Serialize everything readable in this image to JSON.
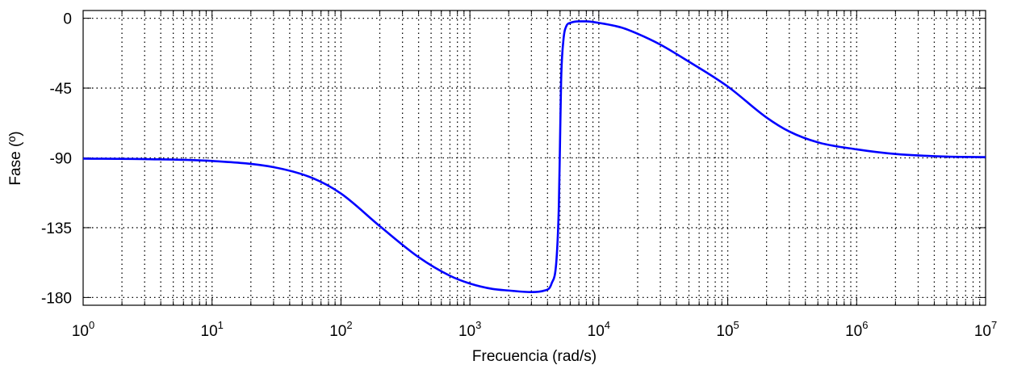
{
  "chart_data": {
    "type": "line",
    "title": "",
    "xlabel": "Frecuencia (rad/s)",
    "ylabel": "Fase (º)",
    "xscale": "log",
    "xlim": [
      1,
      10000000
    ],
    "ylim": [
      -185,
      5
    ],
    "grid": true,
    "grid_style": "dotted",
    "x_ticks": [
      {
        "base": "10",
        "exp": "0",
        "value": 1
      },
      {
        "base": "10",
        "exp": "1",
        "value": 10
      },
      {
        "base": "10",
        "exp": "2",
        "value": 100
      },
      {
        "base": "10",
        "exp": "3",
        "value": 1000
      },
      {
        "base": "10",
        "exp": "4",
        "value": 10000
      },
      {
        "base": "10",
        "exp": "5",
        "value": 100000
      },
      {
        "base": "10",
        "exp": "6",
        "value": 1000000
      },
      {
        "base": "10",
        "exp": "7",
        "value": 10000000
      }
    ],
    "y_ticks": [
      {
        "label": "0",
        "value": 0
      },
      {
        "label": "-45",
        "value": -45
      },
      {
        "label": "-90",
        "value": -90
      },
      {
        "label": "-135",
        "value": -135
      },
      {
        "label": "-180",
        "value": -180
      }
    ],
    "series": [
      {
        "color": "#0000ff",
        "x": [
          1,
          3,
          10,
          30,
          60,
          100,
          200,
          400,
          700,
          1000,
          1500,
          2000,
          3000,
          3800,
          4300,
          4700,
          4900,
          5000,
          5100,
          5300,
          5600,
          6000,
          7000,
          8000,
          10000,
          15000,
          20000,
          30000,
          50000,
          100000,
          200000,
          300000,
          500000,
          1000000,
          2000000,
          5000000,
          10000000
        ],
        "y": [
          -90.5,
          -90.8,
          -92,
          -96,
          -103,
          -113,
          -134,
          -154,
          -166,
          -171,
          -174.5,
          -175.5,
          -176.5,
          -175.5,
          -171,
          -155,
          -120,
          -80,
          -40,
          -15,
          -5,
          -3,
          -2,
          -2,
          -3,
          -6,
          -10,
          -17,
          -28,
          -44,
          -64,
          -73,
          -80,
          -84.5,
          -87.5,
          -89.2,
          -89.5
        ]
      }
    ]
  }
}
